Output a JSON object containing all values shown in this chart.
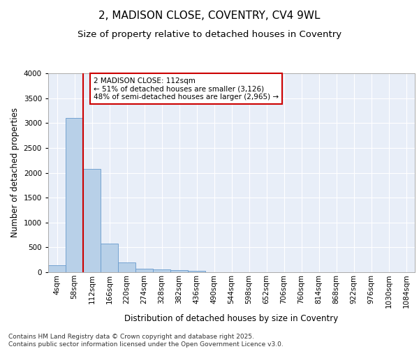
{
  "title": "2, MADISON CLOSE, COVENTRY, CV4 9WL",
  "subtitle": "Size of property relative to detached houses in Coventry",
  "xlabel": "Distribution of detached houses by size in Coventry",
  "ylabel": "Number of detached properties",
  "bin_labels": [
    "4sqm",
    "58sqm",
    "112sqm",
    "166sqm",
    "220sqm",
    "274sqm",
    "328sqm",
    "382sqm",
    "436sqm",
    "490sqm",
    "544sqm",
    "598sqm",
    "652sqm",
    "706sqm",
    "760sqm",
    "814sqm",
    "868sqm",
    "922sqm",
    "976sqm",
    "1030sqm",
    "1084sqm"
  ],
  "bar_values": [
    140,
    3100,
    2080,
    570,
    200,
    75,
    55,
    45,
    30,
    0,
    0,
    0,
    0,
    0,
    0,
    0,
    0,
    0,
    0,
    0,
    0
  ],
  "bar_color": "#b8d0e8",
  "bar_edge_color": "#6699cc",
  "vline_color": "#cc0000",
  "annotation_text": "2 MADISON CLOSE: 112sqm\n← 51% of detached houses are smaller (3,126)\n48% of semi-detached houses are larger (2,965) →",
  "annotation_box_color": "#cc0000",
  "ylim": [
    0,
    4000
  ],
  "yticks": [
    0,
    500,
    1000,
    1500,
    2000,
    2500,
    3000,
    3500,
    4000
  ],
  "background_color": "#e8eef8",
  "grid_color": "#ffffff",
  "footer_text": "Contains HM Land Registry data © Crown copyright and database right 2025.\nContains public sector information licensed under the Open Government Licence v3.0.",
  "title_fontsize": 11,
  "subtitle_fontsize": 9.5,
  "axis_label_fontsize": 8.5,
  "tick_fontsize": 7.5,
  "annotation_fontsize": 7.5,
  "footer_fontsize": 6.5
}
